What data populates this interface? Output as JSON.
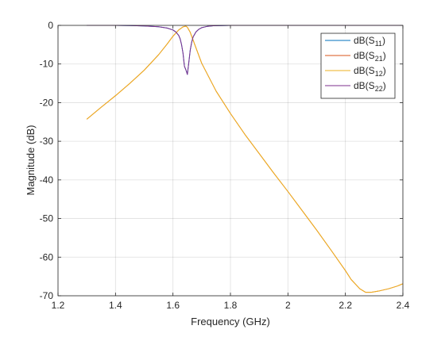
{
  "chart_data": {
    "type": "line",
    "xlabel": "Frequency (GHz)",
    "ylabel": "Magnitude (dB)",
    "xlim": [
      1.2,
      2.4
    ],
    "ylim": [
      -70,
      0
    ],
    "xticks": [
      1.2,
      1.4,
      1.6,
      1.8,
      2.0,
      2.2,
      2.4
    ],
    "xtick_labels": [
      "1.2",
      "1.4",
      "1.6",
      "1.8",
      "2",
      "2.2",
      "2.4"
    ],
    "yticks": [
      0,
      -10,
      -20,
      -30,
      -40,
      -50,
      -60,
      -70
    ],
    "ytick_labels": [
      "0",
      "-10",
      "-20",
      "-30",
      "-40",
      "-50",
      "-60",
      "-70"
    ],
    "grid": true,
    "legend_position": "top-right",
    "series": [
      {
        "name": "dB(S11)",
        "label_base": "dB(S",
        "label_sub": "11",
        "label_end": ")",
        "color": "#0072BD",
        "x": [
          1.3,
          1.4,
          1.45,
          1.5,
          1.55,
          1.58,
          1.6,
          1.61,
          1.62,
          1.625,
          1.63,
          1.635,
          1.64,
          1.645,
          1.65,
          1.655,
          1.66,
          1.665,
          1.67,
          1.68,
          1.69,
          1.7,
          1.72,
          1.74,
          1.8,
          2.0,
          2.2,
          2.4
        ],
        "y": [
          0,
          0,
          -0.05,
          -0.15,
          -0.35,
          -0.7,
          -1.2,
          -1.7,
          -2.6,
          -3.5,
          -5,
          -7.2,
          -10.6,
          -11.5,
          -12.7,
          -9.6,
          -6.4,
          -4.4,
          -3,
          -1.7,
          -1,
          -0.6,
          -0.25,
          -0.1,
          0,
          0,
          0,
          0
        ]
      },
      {
        "name": "dB(S21)",
        "label_base": "dB(S",
        "label_sub": "21",
        "label_end": ")",
        "color": "#D95319",
        "x": [
          1.3,
          1.35,
          1.4,
          1.45,
          1.5,
          1.55,
          1.58,
          1.6,
          1.62,
          1.635,
          1.645,
          1.65,
          1.66,
          1.68,
          1.7,
          1.75,
          1.8,
          1.85,
          1.9,
          1.95,
          2.0,
          2.05,
          2.1,
          2.15,
          2.2,
          2.22,
          2.25,
          2.27,
          2.29,
          2.32,
          2.35,
          2.38,
          2.4
        ],
        "y": [
          -24.3,
          -21.2,
          -18.2,
          -15,
          -11.6,
          -7.6,
          -4.8,
          -2.8,
          -1.2,
          -0.4,
          -0.2,
          -0.5,
          -1.8,
          -5.8,
          -9.8,
          -17,
          -22.8,
          -28.2,
          -33.2,
          -38.2,
          -43,
          -48,
          -53,
          -58.2,
          -63.5,
          -65.8,
          -68.2,
          -69.1,
          -69.1,
          -68.7,
          -68.2,
          -67.5,
          -66.9
        ]
      },
      {
        "name": "dB(S12)",
        "label_base": "dB(S",
        "label_sub": "12",
        "label_end": ")",
        "color": "#EDB120",
        "x": [
          1.3,
          1.35,
          1.4,
          1.45,
          1.5,
          1.55,
          1.58,
          1.6,
          1.62,
          1.635,
          1.645,
          1.65,
          1.66,
          1.68,
          1.7,
          1.75,
          1.8,
          1.85,
          1.9,
          1.95,
          2.0,
          2.05,
          2.1,
          2.15,
          2.2,
          2.22,
          2.25,
          2.27,
          2.29,
          2.32,
          2.35,
          2.38,
          2.4
        ],
        "y": [
          -24.3,
          -21.2,
          -18.2,
          -15,
          -11.6,
          -7.6,
          -4.8,
          -2.8,
          -1.2,
          -0.4,
          -0.2,
          -0.5,
          -1.8,
          -5.8,
          -9.8,
          -17,
          -22.8,
          -28.2,
          -33.2,
          -38.2,
          -43,
          -48,
          -53,
          -58.2,
          -63.5,
          -65.8,
          -68.2,
          -69.1,
          -69.1,
          -68.7,
          -68.2,
          -67.5,
          -66.9
        ]
      },
      {
        "name": "dB(S22)",
        "label_base": "dB(S",
        "label_sub": "22",
        "label_end": ")",
        "color": "#7E2F8E",
        "x": [
          1.3,
          1.4,
          1.45,
          1.5,
          1.55,
          1.58,
          1.6,
          1.61,
          1.62,
          1.625,
          1.63,
          1.635,
          1.64,
          1.645,
          1.65,
          1.655,
          1.66,
          1.665,
          1.67,
          1.68,
          1.69,
          1.7,
          1.72,
          1.74,
          1.8,
          2.0,
          2.2,
          2.4
        ],
        "y": [
          0,
          0,
          -0.05,
          -0.15,
          -0.35,
          -0.7,
          -1.2,
          -1.7,
          -2.6,
          -3.5,
          -5,
          -7.2,
          -10.6,
          -11.5,
          -12.7,
          -9.6,
          -6.4,
          -4.4,
          -3,
          -1.7,
          -1,
          -0.6,
          -0.25,
          -0.1,
          0,
          0,
          0,
          0
        ]
      }
    ]
  }
}
